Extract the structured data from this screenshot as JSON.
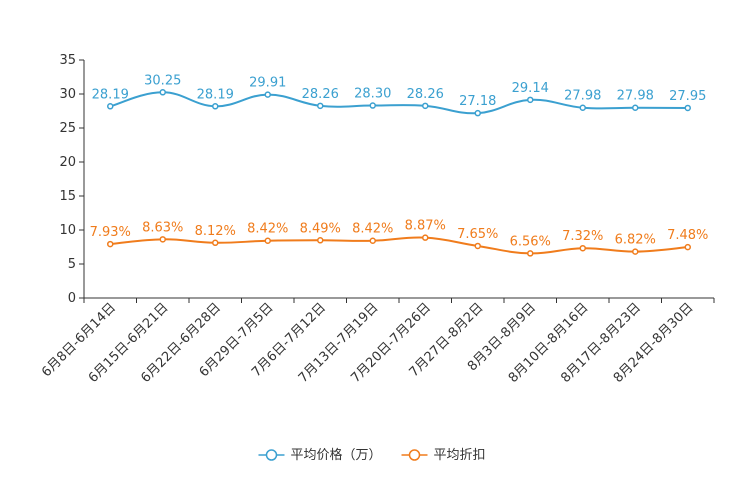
{
  "chart_data": {
    "type": "line",
    "title": "",
    "xlabel": "",
    "ylabel": "",
    "ylim": [
      0,
      35
    ],
    "yticks": [
      0,
      5,
      10,
      15,
      20,
      25,
      30,
      35
    ],
    "categories": [
      "6月8日-6月14日",
      "6月15日-6月21日",
      "6月22日-6月28日",
      "6月29日-7月5日",
      "7月6日-7月12日",
      "7月13日-7月19日",
      "7月20日-7月26日",
      "7月27日-8月2日",
      "8月3日-8月9日",
      "8月10日-8月16日",
      "8月17日-8月23日",
      "8月24日-8月30日"
    ],
    "series": [
      {
        "name": "平均价格（万）",
        "color": "#3ba0d0",
        "values": [
          28.19,
          30.25,
          28.19,
          29.91,
          28.26,
          28.3,
          28.26,
          27.18,
          29.14,
          27.98,
          27.98,
          27.95
        ],
        "labels": [
          "28.19",
          "30.25",
          "28.19",
          "29.91",
          "28.26",
          "28.30",
          "28.26",
          "27.18",
          "29.14",
          "27.98",
          "27.98",
          "27.95"
        ]
      },
      {
        "name": "平均折扣",
        "color": "#f07c1c",
        "values": [
          7.93,
          8.63,
          8.12,
          8.42,
          8.49,
          8.42,
          8.87,
          7.65,
          6.56,
          7.32,
          6.82,
          7.48
        ],
        "labels": [
          "7.93%",
          "8.63%",
          "8.12%",
          "8.42%",
          "8.49%",
          "8.42%",
          "8.87%",
          "7.65%",
          "6.56%",
          "7.32%",
          "6.82%",
          "7.48%"
        ]
      }
    ],
    "legend_position": "bottom-center",
    "grid": false
  }
}
